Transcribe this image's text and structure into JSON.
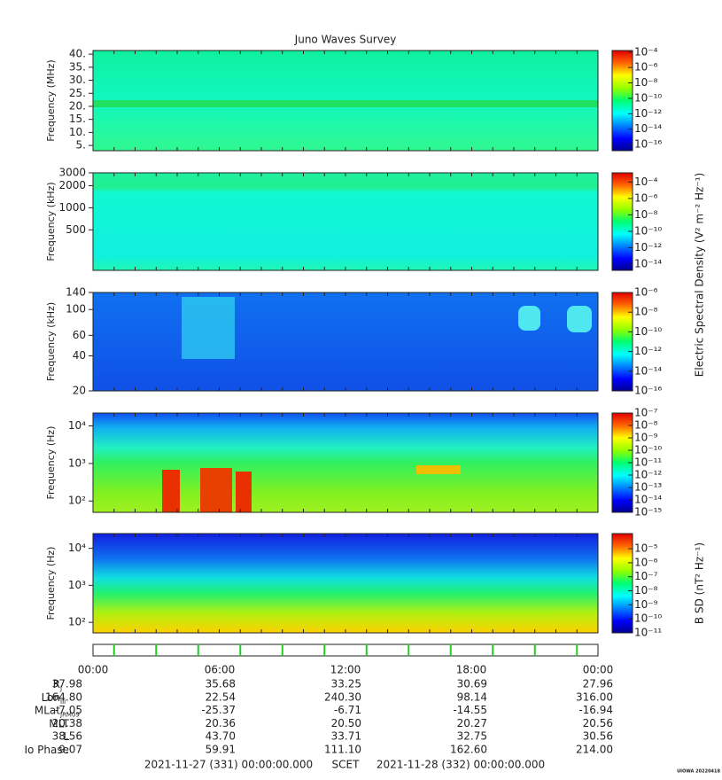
{
  "title": "Juno Waves Survey",
  "panels": [
    {
      "ylabel": "Frequency (MHz)",
      "log": false,
      "ylim": [
        3,
        41.4
      ],
      "yticks": [
        {
          "value": 40,
          "label": "40."
        },
        {
          "value": 35,
          "label": "35."
        },
        {
          "value": 30,
          "label": "30."
        },
        {
          "value": 25,
          "label": "25."
        },
        {
          "value": 20,
          "label": "20."
        },
        {
          "value": 15,
          "label": "15."
        },
        {
          "value": 10,
          "label": "10."
        },
        {
          "value": 5,
          "label": "5."
        }
      ],
      "clim": [
        1.6e-17,
        0.00016
      ],
      "cticks": [
        {
          "value": 0.0001,
          "label": "10⁻⁴"
        },
        {
          "value": 1e-06,
          "label": "10⁻⁶"
        },
        {
          "value": 1e-08,
          "label": "10⁻⁸"
        },
        {
          "value": 1e-10,
          "label": "10⁻¹⁰"
        },
        {
          "value": 1e-12,
          "label": "10⁻¹²"
        },
        {
          "value": 1e-14,
          "label": "10⁻¹⁴"
        },
        {
          "value": 1e-16,
          "label": "10⁻¹⁶"
        }
      ]
    },
    {
      "ylabel": "Frequency (kHz)",
      "log": true,
      "ylim": [
        140,
        3000
      ],
      "yticks": [
        3000,
        2000,
        1000,
        500
      ],
      "clim": [
        1.8e-15,
        0.0013
      ],
      "cticks": [
        {
          "value": 0.0001,
          "label": "10⁻⁴"
        },
        {
          "value": 1e-06,
          "label": "10⁻⁶"
        },
        {
          "value": 1e-08,
          "label": "10⁻⁸"
        },
        {
          "value": 1e-10,
          "label": "10⁻¹⁰"
        },
        {
          "value": 1e-12,
          "label": "10⁻¹²"
        },
        {
          "value": 1e-14,
          "label": "10⁻¹⁴"
        }
      ]
    },
    {
      "ylabel": "Frequency (kHz)",
      "log": true,
      "ylim": [
        20,
        140
      ],
      "yticks": [
        140,
        100,
        60,
        40,
        20
      ],
      "clim": [
        1e-16,
        1e-06
      ],
      "cticks": [
        {
          "value": 1e-06,
          "label": "10⁻⁶"
        },
        {
          "value": 1e-08,
          "label": "10⁻⁸"
        },
        {
          "value": 1e-10,
          "label": "10⁻¹⁰"
        },
        {
          "value": 1e-12,
          "label": "10⁻¹²"
        },
        {
          "value": 1e-14,
          "label": "10⁻¹⁴"
        },
        {
          "value": 1e-16,
          "label": "10⁻¹⁶"
        }
      ]
    },
    {
      "ylabel": "Frequency (Hz)",
      "log": true,
      "ylim": [
        50,
        22000
      ],
      "yticks": [
        {
          "value": 10000,
          "label": "10⁴"
        },
        {
          "value": 1000,
          "label": "10³"
        },
        {
          "value": 100,
          "label": "10²"
        }
      ],
      "clim": [
        1e-15,
        1e-07
      ],
      "cticks": [
        {
          "value": 1e-07,
          "label": "10⁻⁷"
        },
        {
          "value": 1e-08,
          "label": "10⁻⁸"
        },
        {
          "value": 1e-09,
          "label": "10⁻⁹"
        },
        {
          "value": 1e-10,
          "label": "10⁻¹⁰"
        },
        {
          "value": 1e-11,
          "label": "10⁻¹¹"
        },
        {
          "value": 1e-12,
          "label": "10⁻¹²"
        },
        {
          "value": 1e-13,
          "label": "10⁻¹³"
        },
        {
          "value": 1e-14,
          "label": "10⁻¹⁴"
        },
        {
          "value": 1e-15,
          "label": "10⁻¹⁵"
        }
      ]
    },
    {
      "ylabel": "Frequency (Hz)",
      "log": true,
      "ylim": [
        52,
        25000
      ],
      "yticks": [
        {
          "value": 10000,
          "label": "10⁴"
        },
        {
          "value": 1000,
          "label": "10³"
        },
        {
          "value": 100,
          "label": "10²"
        }
      ],
      "clim": [
        1e-11,
        0.00012
      ],
      "cticks": [
        {
          "value": 1e-05,
          "label": "10⁻⁵"
        },
        {
          "value": 1e-06,
          "label": "10⁻⁶"
        },
        {
          "value": 1e-07,
          "label": "10⁻⁷"
        },
        {
          "value": 1e-08,
          "label": "10⁻⁸"
        },
        {
          "value": 1e-09,
          "label": "10⁻⁹"
        },
        {
          "value": 1e-10,
          "label": "10⁻¹⁰"
        },
        {
          "value": 1e-11,
          "label": "10⁻¹¹"
        }
      ]
    }
  ],
  "colorbar_labels": [
    "Electric Spectral Density (V² m⁻² Hz⁻¹)",
    "B SD (nT² Hz⁻¹)"
  ],
  "ephemeris": {
    "times": [
      "00:00",
      "06:00",
      "12:00",
      "18:00",
      "00:00"
    ],
    "rows": [
      {
        "label": "R",
        "sub": "J",
        "values": [
          "37.98",
          "35.68",
          "33.25",
          "30.69",
          "27.96"
        ]
      },
      {
        "label": "Lon",
        "sub": "III",
        "values": [
          "164.80",
          "22.54",
          "240.30",
          "98.14",
          "316.00"
        ]
      },
      {
        "label": "MLat",
        "sub": "JRM09",
        "values": [
          "-7.05",
          "-25.37",
          "-6.71",
          "-14.55",
          "-16.94"
        ]
      },
      {
        "label": "MLT",
        "sub": "",
        "values": [
          "20.38",
          "20.36",
          "20.50",
          "20.27",
          "20.56"
        ]
      },
      {
        "label": "L",
        "sub": "",
        "values": [
          "38.56",
          "43.70",
          "33.71",
          "32.75",
          "30.56"
        ]
      },
      {
        "label": "Io Phase",
        "sub": "",
        "values": [
          "9.07",
          "59.91",
          "111.10",
          "162.60",
          "214.00"
        ]
      }
    ]
  },
  "footer": {
    "start": "2021-11-27 (331) 00:00:00.000",
    "axis": "SCET",
    "end": "2021-11-28 (332) 00:00:00.000"
  },
  "credit": "UIOWA 20220418"
}
